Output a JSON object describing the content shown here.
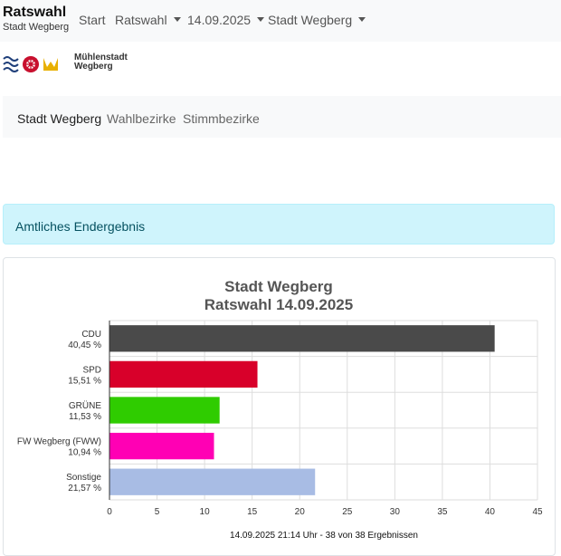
{
  "navbar": {
    "brand_title": "Ratswahl",
    "brand_subtitle": "Stadt Wegberg",
    "items": [
      {
        "label": "Start",
        "dropdown": false
      },
      {
        "label": "Ratswahl",
        "dropdown": true
      },
      {
        "label": "14.09.2025",
        "dropdown": true
      },
      {
        "label": "Stadt Wegberg",
        "dropdown": true
      }
    ]
  },
  "logo": {
    "line1": "Mühlenstadt",
    "line2": "Wegberg"
  },
  "subnav": {
    "items": [
      {
        "label": "Stadt Wegberg",
        "active": true
      },
      {
        "label": "Wahlbezirke",
        "active": false
      },
      {
        "label": "Stimmbezirke",
        "active": false
      }
    ]
  },
  "alert": {
    "text": "Amtliches Endergebnis"
  },
  "chart_data": {
    "type": "bar",
    "orientation": "horizontal",
    "title": "Stadt Wegberg",
    "subtitle": "Ratswahl 14.09.2025",
    "categories": [
      "CDU",
      "SPD",
      "GRÜNE",
      "FW Wegberg (FWW)",
      "Sonstige"
    ],
    "value_labels": [
      "40,45 %",
      "15,51 %",
      "11,53 %",
      "10,94 %",
      "21,57 %"
    ],
    "values": [
      40.45,
      15.51,
      11.53,
      10.94,
      21.57
    ],
    "colors": [
      "#4a4a4a",
      "#d8002a",
      "#2fcc00",
      "#ff00b4",
      "#a8bce4"
    ],
    "xlim": [
      0,
      45
    ],
    "x_ticks": [
      "0",
      "5",
      "10",
      "15",
      "20",
      "25",
      "30",
      "35",
      "40",
      "45"
    ],
    "grid": true,
    "footer": "14.09.2025 21:14 Uhr - 38 von 38 Ergebnissen"
  }
}
